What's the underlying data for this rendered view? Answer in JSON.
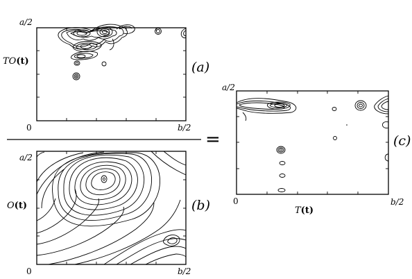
{
  "panels": {
    "a": {
      "tag": "(a)",
      "y_top": "a/2",
      "y_mid_label": "TO",
      "y_mid_arg": "(t)",
      "x_left": "0",
      "x_right": "b/2"
    },
    "b": {
      "tag": "(b)",
      "y_top": "a/2",
      "y_mid_label": "O",
      "y_mid_arg": "(t)",
      "x_left": "0",
      "x_right": "b/2"
    },
    "c": {
      "tag": "(c)",
      "y_top": "a/2",
      "x_left": "0",
      "x_right": "b/2",
      "x_mid_label": "T",
      "x_mid_arg": "(t)"
    }
  },
  "equals_sign": "="
}
